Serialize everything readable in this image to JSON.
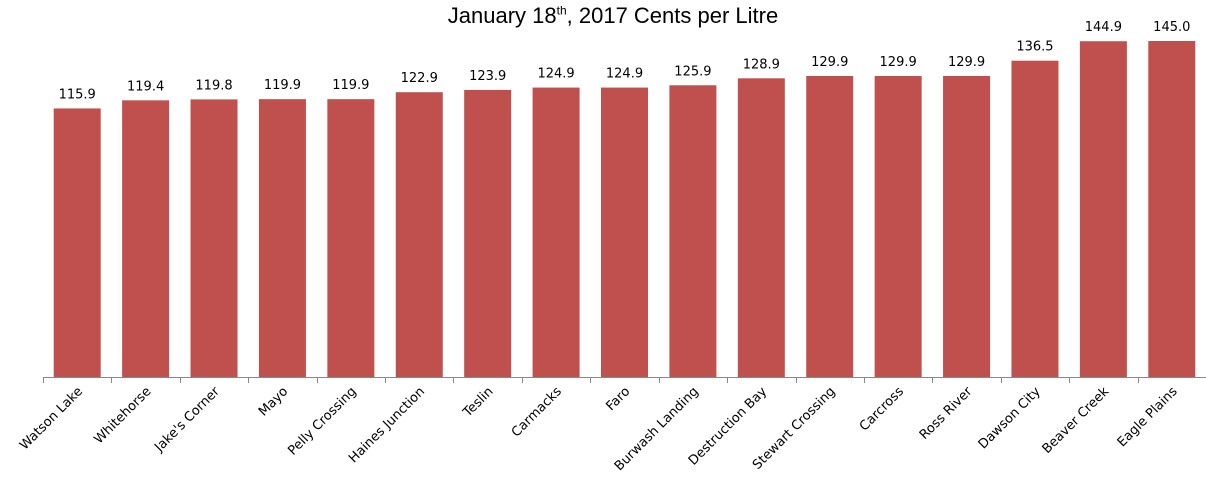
{
  "chart_data": {
    "type": "bar",
    "title": {
      "prefix": "January 18",
      "superscript": "th",
      "suffix": ", 2017 Cents per Litre"
    },
    "categories": [
      "Watson Lake",
      "Whitehorse",
      "Jake's Corner",
      "Mayo",
      "Pelly Crossing",
      "Haines Junction",
      "Teslin",
      "Carmacks",
      "Faro",
      "Burwash Landing",
      "Destruction Bay",
      "Stewart Crossing",
      "Carcross",
      "Ross River",
      "Dawson City",
      "Beaver Creek",
      "Eagle Plains"
    ],
    "values": [
      115.9,
      119.4,
      119.8,
      119.9,
      119.9,
      122.9,
      123.9,
      124.9,
      124.9,
      125.9,
      128.9,
      129.9,
      129.9,
      129.9,
      136.5,
      144.9,
      145.0
    ],
    "value_labels": [
      "115.9",
      "119.4",
      "119.8",
      "119.9",
      "119.9",
      "122.9",
      "123.9",
      "124.9",
      "124.9",
      "125.9",
      "128.9",
      "129.9",
      "129.9",
      "129.9",
      "136.5",
      "144.9",
      "145.0"
    ],
    "ylim": [
      0,
      150
    ],
    "xlabel": "",
    "ylabel": "",
    "grid": false,
    "legend": "none",
    "bar_color": "#c0504d"
  }
}
